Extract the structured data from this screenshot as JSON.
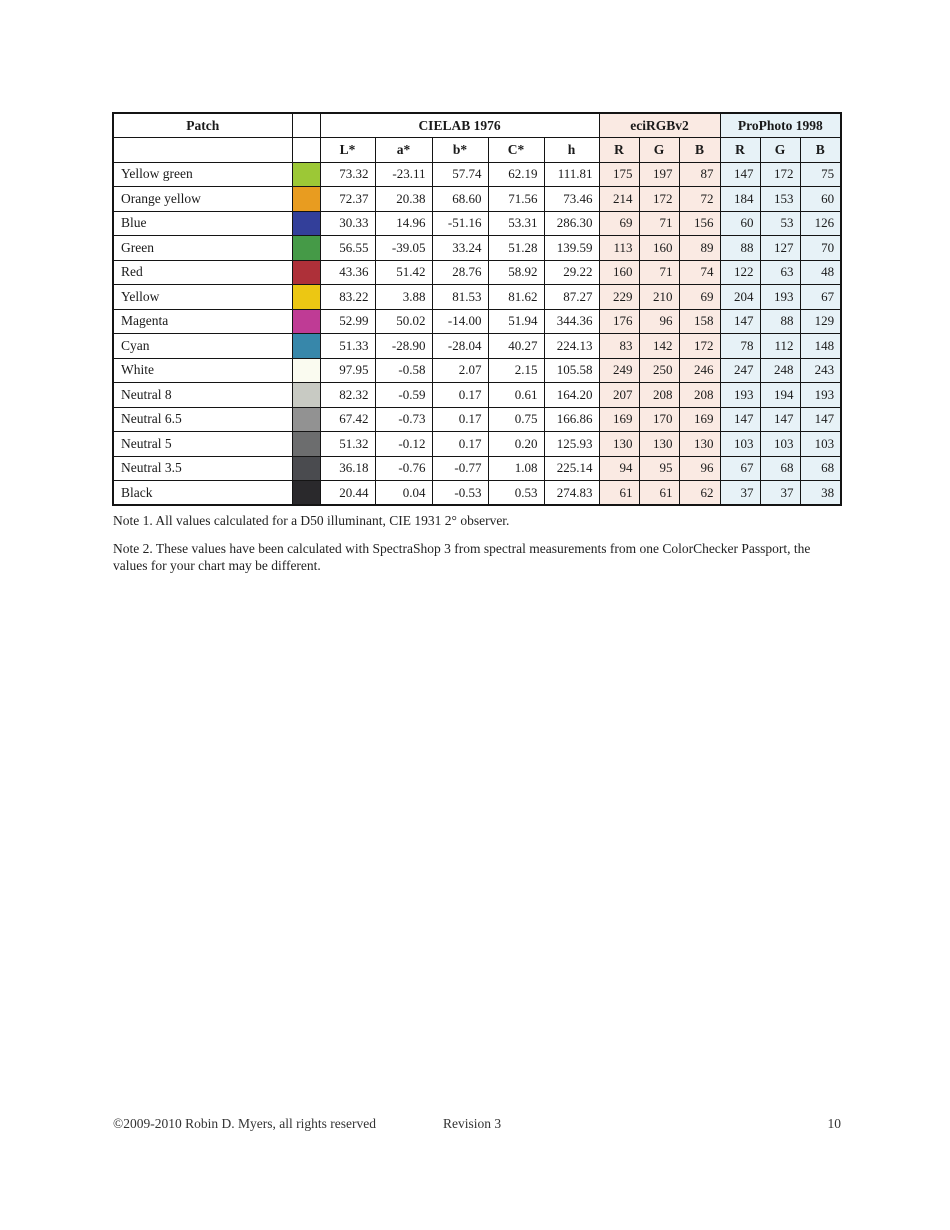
{
  "table": {
    "header": {
      "patch_label": "Patch",
      "groups": [
        {
          "label": "CIELAB 1976",
          "bg": "#ffffff"
        },
        {
          "label": "eciRGBv2",
          "bg": "#faeae3"
        },
        {
          "label": "ProPhoto 1998",
          "bg": "#e7f2f7"
        }
      ],
      "cielab_cols": [
        "L*",
        "a*",
        "b*",
        "C*",
        "h"
      ],
      "eci_cols": [
        "R",
        "G",
        "B"
      ],
      "prophoto_cols": [
        "R",
        "G",
        "B"
      ]
    },
    "rows": [
      {
        "name": "Yellow green",
        "swatch": "#9cc836",
        "cielab": [
          "73.32",
          "-23.11",
          "57.74",
          "62.19",
          "111.81"
        ],
        "eci": [
          "175",
          "197",
          "87"
        ],
        "prophoto": [
          "147",
          "172",
          "75"
        ]
      },
      {
        "name": "Orange yellow",
        "swatch": "#e89c20",
        "cielab": [
          "72.37",
          "20.38",
          "68.60",
          "71.56",
          "73.46"
        ],
        "eci": [
          "214",
          "172",
          "72"
        ],
        "prophoto": [
          "184",
          "153",
          "60"
        ]
      },
      {
        "name": "Blue",
        "swatch": "#333f9a",
        "cielab": [
          "30.33",
          "14.96",
          "-51.16",
          "53.31",
          "286.30"
        ],
        "eci": [
          "69",
          "71",
          "156"
        ],
        "prophoto": [
          "60",
          "53",
          "126"
        ]
      },
      {
        "name": "Green",
        "swatch": "#459a47",
        "cielab": [
          "56.55",
          "-39.05",
          "33.24",
          "51.28",
          "139.59"
        ],
        "eci": [
          "113",
          "160",
          "89"
        ],
        "prophoto": [
          "88",
          "127",
          "70"
        ]
      },
      {
        "name": "Red",
        "swatch": "#ae3039",
        "cielab": [
          "43.36",
          "51.42",
          "28.76",
          "58.92",
          "29.22"
        ],
        "eci": [
          "160",
          "71",
          "74"
        ],
        "prophoto": [
          "122",
          "63",
          "48"
        ]
      },
      {
        "name": "Yellow",
        "swatch": "#ecc713",
        "cielab": [
          "83.22",
          "3.88",
          "81.53",
          "81.62",
          "87.27"
        ],
        "eci": [
          "229",
          "210",
          "69"
        ],
        "prophoto": [
          "204",
          "193",
          "67"
        ]
      },
      {
        "name": "Magenta",
        "swatch": "#bf3b95",
        "cielab": [
          "52.99",
          "50.02",
          "-14.00",
          "51.94",
          "344.36"
        ],
        "eci": [
          "176",
          "96",
          "158"
        ],
        "prophoto": [
          "147",
          "88",
          "129"
        ]
      },
      {
        "name": "Cyan",
        "swatch": "#3787aa",
        "cielab": [
          "51.33",
          "-28.90",
          "-28.04",
          "40.27",
          "224.13"
        ],
        "eci": [
          "83",
          "142",
          "172"
        ],
        "prophoto": [
          "78",
          "112",
          "148"
        ]
      },
      {
        "name": "White",
        "swatch": "#fafbf0",
        "cielab": [
          "97.95",
          "-0.58",
          "2.07",
          "2.15",
          "105.58"
        ],
        "eci": [
          "249",
          "250",
          "246"
        ],
        "prophoto": [
          "247",
          "248",
          "243"
        ]
      },
      {
        "name": "Neutral 8",
        "swatch": "#c8cac3",
        "cielab": [
          "82.32",
          "-0.59",
          "0.17",
          "0.61",
          "164.20"
        ],
        "eci": [
          "207",
          "208",
          "208"
        ],
        "prophoto": [
          "193",
          "194",
          "193"
        ]
      },
      {
        "name": "Neutral 6.5",
        "swatch": "#929292",
        "cielab": [
          "67.42",
          "-0.73",
          "0.17",
          "0.75",
          "166.86"
        ],
        "eci": [
          "169",
          "170",
          "169"
        ],
        "prophoto": [
          "147",
          "147",
          "147"
        ]
      },
      {
        "name": "Neutral 5",
        "swatch": "#6c6d6e",
        "cielab": [
          "51.32",
          "-0.12",
          "0.17",
          "0.20",
          "125.93"
        ],
        "eci": [
          "130",
          "130",
          "130"
        ],
        "prophoto": [
          "103",
          "103",
          "103"
        ]
      },
      {
        "name": "Neutral 3.5",
        "swatch": "#4a4b4f",
        "cielab": [
          "36.18",
          "-0.76",
          "-0.77",
          "1.08",
          "225.14"
        ],
        "eci": [
          "94",
          "95",
          "96"
        ],
        "prophoto": [
          "67",
          "68",
          "68"
        ]
      },
      {
        "name": "Black",
        "swatch": "#2a292c",
        "cielab": [
          "20.44",
          "0.04",
          "-0.53",
          "0.53",
          "274.83"
        ],
        "eci": [
          "61",
          "61",
          "62"
        ],
        "prophoto": [
          "37",
          "37",
          "38"
        ]
      }
    ]
  },
  "notes": [
    "Note 1. All values calculated for a D50 illuminant, CIE 1931 2° observer.",
    "Note 2. These values have been calculated with SpectraShop 3 from spectral measurements from one ColorChecker Passport, the values for your chart may be different."
  ],
  "footer": {
    "copyright": "©2009-2010 Robin D. Myers, all rights reserved",
    "revision": "Revision 3",
    "page_number": "10"
  }
}
